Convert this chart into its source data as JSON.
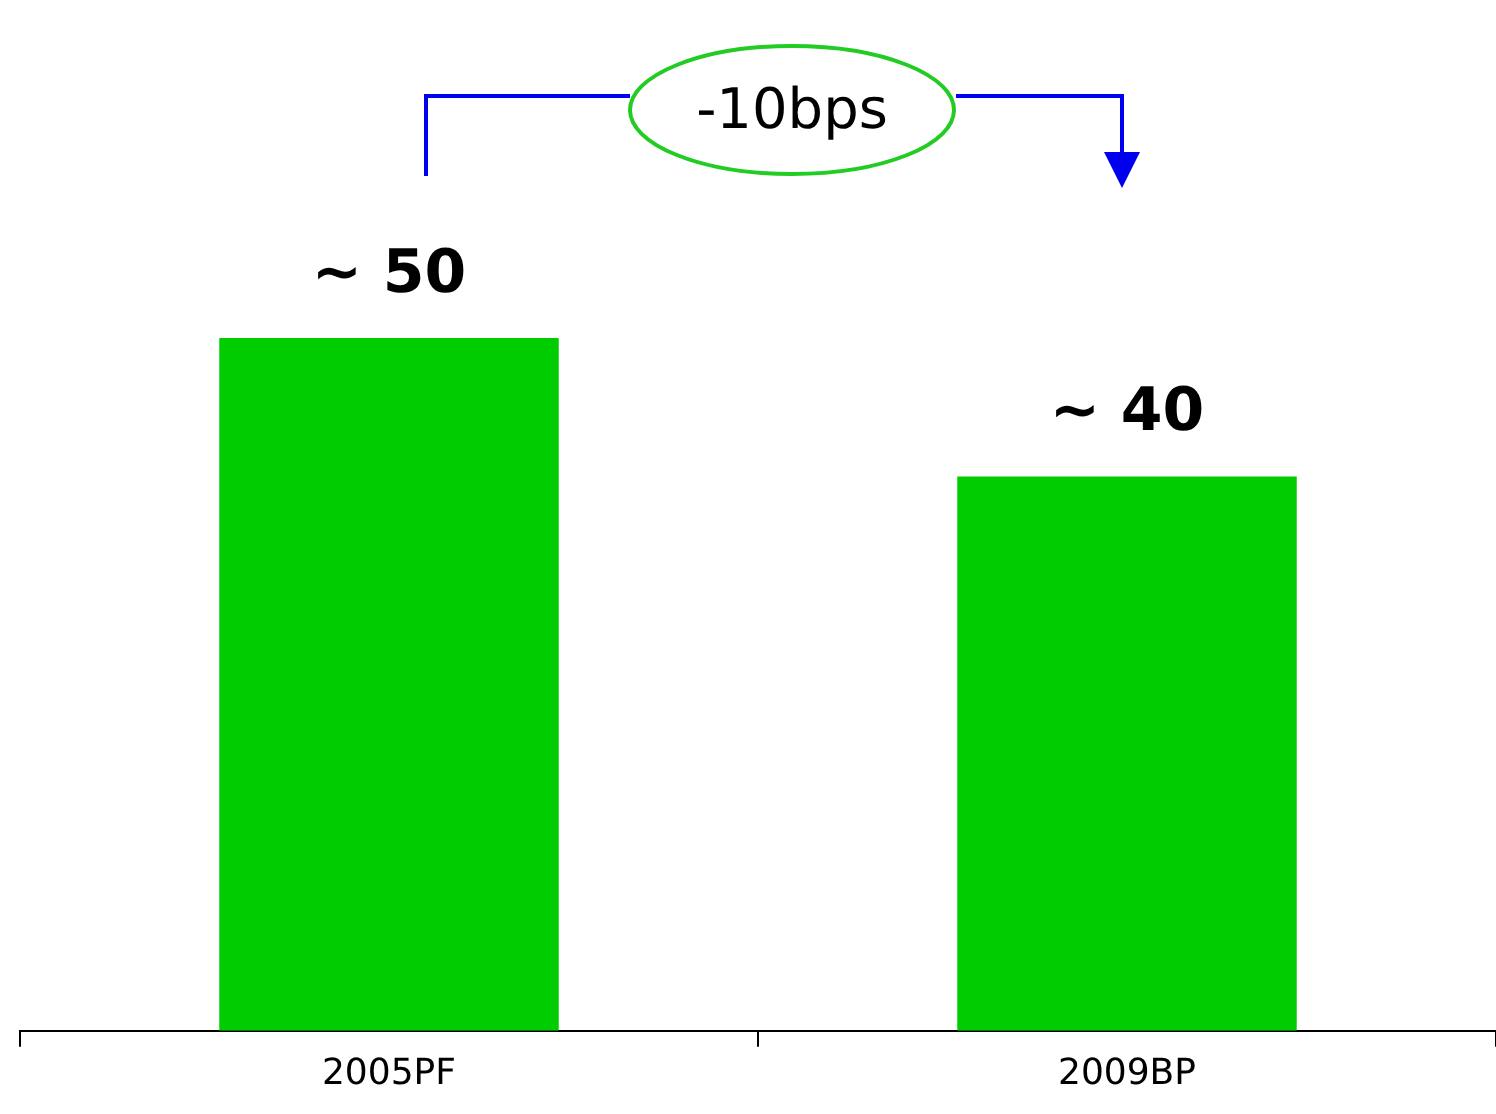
{
  "chart_data": {
    "type": "bar",
    "categories": [
      "2005PF",
      "2009BP"
    ],
    "values": [
      50,
      40
    ],
    "color": "#00cc00",
    "value_labels": [
      "~ 50",
      "~ 40"
    ],
    "annotations": [
      "-10bps"
    ]
  }
}
